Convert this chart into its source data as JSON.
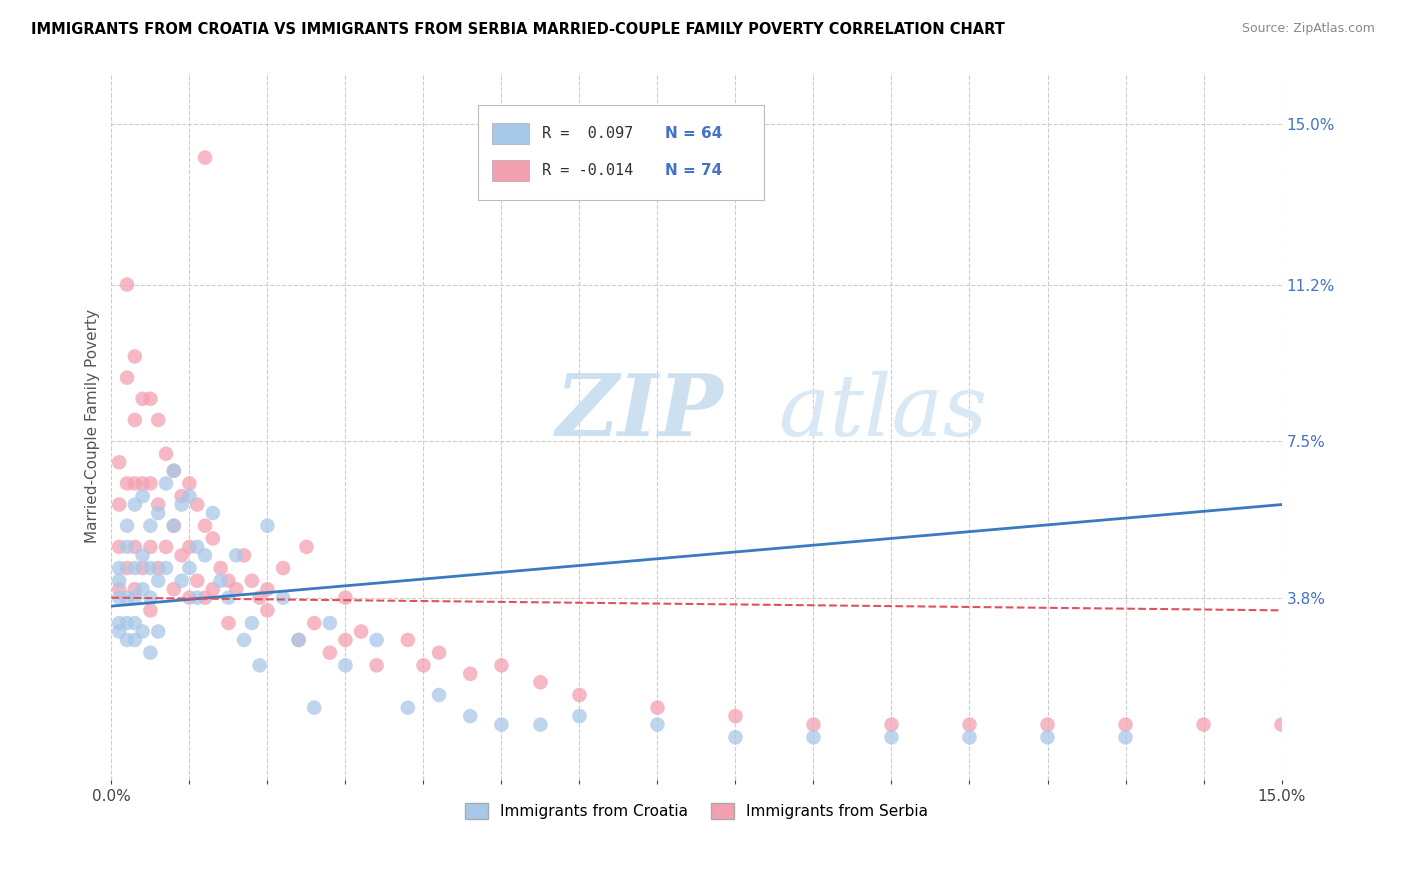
{
  "title": "IMMIGRANTS FROM CROATIA VS IMMIGRANTS FROM SERBIA MARRIED-COUPLE FAMILY POVERTY CORRELATION CHART",
  "source": "Source: ZipAtlas.com",
  "ylabel": "Married-Couple Family Poverty",
  "xlim": [
    0,
    0.15
  ],
  "ylim": [
    -0.005,
    0.162
  ],
  "ytick_right_labels": [
    "3.8%",
    "7.5%",
    "11.2%",
    "15.0%"
  ],
  "ytick_right_values": [
    0.038,
    0.075,
    0.112,
    0.15
  ],
  "croatia_color": "#a8c8e8",
  "serbia_color": "#f4a0b0",
  "trend_croatia_color": "#3a7abf",
  "trend_serbia_color": "#e05060",
  "watermark_zip": "ZIP",
  "watermark_atlas": "atlas",
  "legend_croatia_r": "R =  0.097",
  "legend_croatia_n": "N = 64",
  "legend_serbia_r": "R = -0.014",
  "legend_serbia_n": "N = 74",
  "croatia_x": [
    0.001,
    0.001,
    0.001,
    0.001,
    0.001,
    0.002,
    0.002,
    0.002,
    0.002,
    0.002,
    0.003,
    0.003,
    0.003,
    0.003,
    0.003,
    0.004,
    0.004,
    0.004,
    0.004,
    0.005,
    0.005,
    0.005,
    0.005,
    0.006,
    0.006,
    0.006,
    0.007,
    0.007,
    0.008,
    0.008,
    0.009,
    0.009,
    0.01,
    0.01,
    0.011,
    0.011,
    0.012,
    0.013,
    0.014,
    0.015,
    0.016,
    0.017,
    0.018,
    0.019,
    0.02,
    0.022,
    0.024,
    0.026,
    0.028,
    0.03,
    0.034,
    0.038,
    0.042,
    0.046,
    0.05,
    0.055,
    0.06,
    0.07,
    0.08,
    0.09,
    0.1,
    0.11,
    0.12,
    0.13
  ],
  "croatia_y": [
    0.038,
    0.042,
    0.045,
    0.032,
    0.03,
    0.05,
    0.055,
    0.038,
    0.032,
    0.028,
    0.06,
    0.045,
    0.038,
    0.032,
    0.028,
    0.062,
    0.048,
    0.04,
    0.03,
    0.055,
    0.045,
    0.038,
    0.025,
    0.058,
    0.042,
    0.03,
    0.065,
    0.045,
    0.068,
    0.055,
    0.06,
    0.042,
    0.062,
    0.045,
    0.05,
    0.038,
    0.048,
    0.058,
    0.042,
    0.038,
    0.048,
    0.028,
    0.032,
    0.022,
    0.055,
    0.038,
    0.028,
    0.012,
    0.032,
    0.022,
    0.028,
    0.012,
    0.015,
    0.01,
    0.008,
    0.008,
    0.01,
    0.008,
    0.005,
    0.005,
    0.005,
    0.005,
    0.005,
    0.005
  ],
  "serbia_x": [
    0.001,
    0.001,
    0.001,
    0.001,
    0.002,
    0.002,
    0.002,
    0.002,
    0.003,
    0.003,
    0.003,
    0.003,
    0.003,
    0.004,
    0.004,
    0.004,
    0.005,
    0.005,
    0.005,
    0.005,
    0.006,
    0.006,
    0.006,
    0.007,
    0.007,
    0.008,
    0.008,
    0.008,
    0.009,
    0.009,
    0.01,
    0.01,
    0.01,
    0.011,
    0.011,
    0.012,
    0.012,
    0.013,
    0.013,
    0.014,
    0.015,
    0.016,
    0.017,
    0.018,
    0.019,
    0.02,
    0.022,
    0.024,
    0.026,
    0.028,
    0.03,
    0.032,
    0.034,
    0.038,
    0.042,
    0.046,
    0.05,
    0.055,
    0.06,
    0.07,
    0.08,
    0.09,
    0.1,
    0.11,
    0.12,
    0.13,
    0.14,
    0.15,
    0.03,
    0.02,
    0.025,
    0.015,
    0.04,
    0.012
  ],
  "serbia_y": [
    0.07,
    0.06,
    0.05,
    0.04,
    0.112,
    0.09,
    0.065,
    0.045,
    0.095,
    0.08,
    0.065,
    0.05,
    0.04,
    0.085,
    0.065,
    0.045,
    0.085,
    0.065,
    0.05,
    0.035,
    0.08,
    0.06,
    0.045,
    0.072,
    0.05,
    0.068,
    0.055,
    0.04,
    0.062,
    0.048,
    0.065,
    0.05,
    0.038,
    0.06,
    0.042,
    0.055,
    0.038,
    0.052,
    0.04,
    0.045,
    0.042,
    0.04,
    0.048,
    0.042,
    0.038,
    0.04,
    0.045,
    0.028,
    0.032,
    0.025,
    0.038,
    0.03,
    0.022,
    0.028,
    0.025,
    0.02,
    0.022,
    0.018,
    0.015,
    0.012,
    0.01,
    0.008,
    0.008,
    0.008,
    0.008,
    0.008,
    0.008,
    0.008,
    0.028,
    0.035,
    0.05,
    0.032,
    0.022,
    0.142
  ]
}
